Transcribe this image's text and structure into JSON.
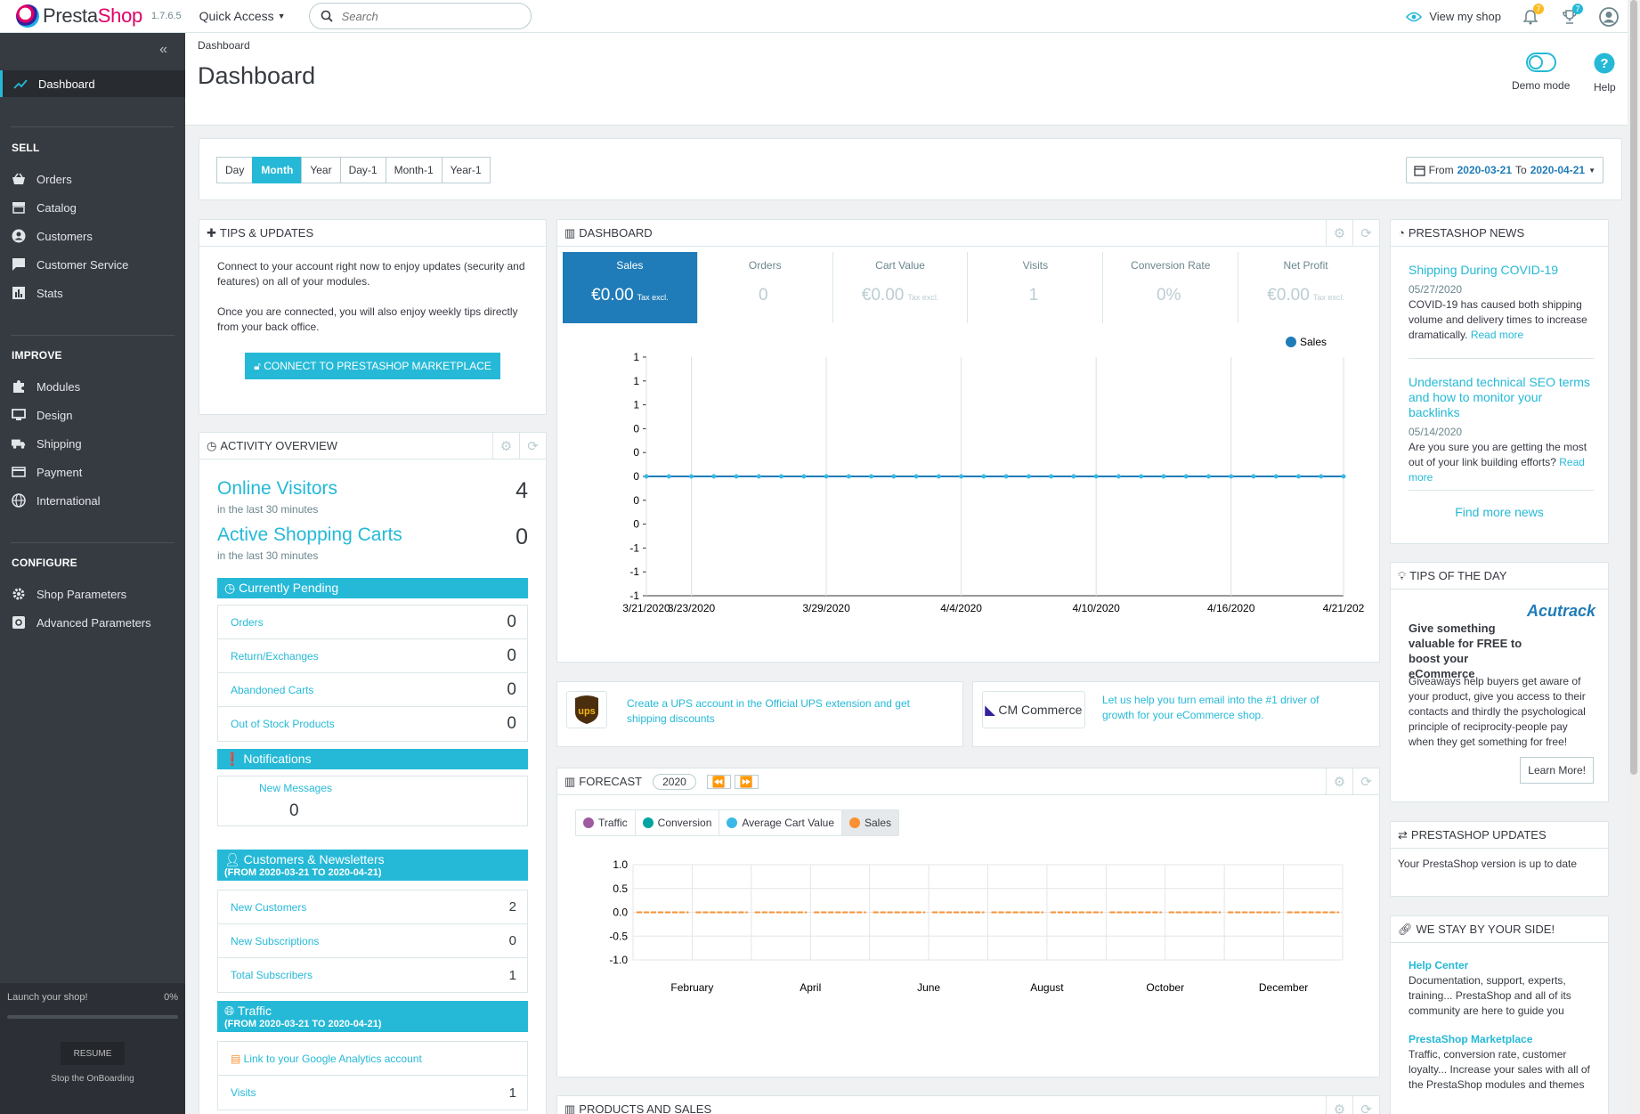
{
  "app": {
    "name_pre": "Presta",
    "name_post": "Shop",
    "version": "1.7.6.5"
  },
  "header": {
    "quick_access": "Quick Access",
    "search_placeholder": "Search",
    "view_shop": "View my shop",
    "notif_orders": "7",
    "notif_customers": "7"
  },
  "sidebar": {
    "active": "Dashboard",
    "sections": {
      "sell": "SELL",
      "improve": "IMPROVE",
      "configure": "CONFIGURE"
    },
    "sell_items": [
      "Orders",
      "Catalog",
      "Customers",
      "Customer Service",
      "Stats"
    ],
    "improve_items": [
      "Modules",
      "Design",
      "Shipping",
      "Payment",
      "International"
    ],
    "configure_items": [
      "Shop Parameters",
      "Advanced Parameters"
    ],
    "onboarding": {
      "label": "Launch your shop!",
      "percent": "0%",
      "resume": "RESUME",
      "stop": "Stop the OnBoarding"
    }
  },
  "page": {
    "breadcrumb": "Dashboard",
    "title": "Dashboard",
    "demo_mode": "Demo mode",
    "help": "Help"
  },
  "period": {
    "buttons": [
      "Day",
      "Month",
      "Year",
      "Day-1",
      "Month-1",
      "Year-1"
    ],
    "active": "Month",
    "from_label": "From",
    "from": "2020-03-21",
    "to_label": "To",
    "to": "2020-04-21"
  },
  "tips": {
    "title": "TIPS & UPDATES",
    "p1": "Connect to your account right now to enjoy updates (security and features) on all of your modules.",
    "p2": "Once you are connected, you will also enjoy weekly tips directly from your back office.",
    "button": "CONNECT TO PRESTASHOP MARKETPLACE"
  },
  "activity": {
    "title": "ACTIVITY OVERVIEW",
    "online_visitors": "Online Visitors",
    "online_visitors_value": "4",
    "online_sub": "in the last 30 minutes",
    "active_carts": "Active Shopping Carts",
    "active_carts_value": "0",
    "carts_sub": "in the last 30 minutes",
    "pending_title": "Currently Pending",
    "pending": [
      {
        "label": "Orders",
        "value": "0"
      },
      {
        "label": "Return/Exchanges",
        "value": "0"
      },
      {
        "label": "Abandoned Carts",
        "value": "0"
      },
      {
        "label": "Out of Stock Products",
        "value": "0"
      }
    ],
    "notifications_title": "Notifications",
    "new_messages": "New Messages",
    "new_messages_value": "0",
    "customers_title": "Customers & Newsletters",
    "customers_range": "(FROM 2020-03-21 TO 2020-04-21)",
    "customers": [
      {
        "label": "New Customers",
        "value": "2"
      },
      {
        "label": "New Subscriptions",
        "value": "0"
      },
      {
        "label": "Total Subscribers",
        "value": "1"
      }
    ],
    "traffic_title": "Traffic",
    "traffic_range": "(FROM 2020-03-21 TO 2020-04-21)",
    "ga_link": "Link to your Google Analytics account",
    "visits_label": "Visits",
    "visits_value": "1"
  },
  "dashboard": {
    "title": "DASHBOARD",
    "kpis": [
      {
        "label": "Sales",
        "value": "€0.00",
        "suffix": "Tax excl."
      },
      {
        "label": "Orders",
        "value": "0",
        "suffix": ""
      },
      {
        "label": "Cart Value",
        "value": "€0.00",
        "suffix": "Tax excl."
      },
      {
        "label": "Visits",
        "value": "1",
        "suffix": ""
      },
      {
        "label": "Conversion Rate",
        "value": "0%",
        "suffix": ""
      },
      {
        "label": "Net Profit",
        "value": "€0.00",
        "suffix": "Tax excl."
      }
    ],
    "legend": "Sales"
  },
  "chart_data": [
    {
      "type": "line",
      "title": "",
      "series": [
        {
          "name": "Sales",
          "values": [
            0,
            0,
            0,
            0,
            0,
            0,
            0,
            0,
            0,
            0,
            0,
            0,
            0,
            0,
            0,
            0,
            0,
            0,
            0,
            0,
            0,
            0,
            0,
            0,
            0,
            0,
            0,
            0,
            0,
            0,
            0,
            0
          ]
        }
      ],
      "x_start": "2020-03-21",
      "x_end": "2020-04-21",
      "x_ticks": [
        "3/21/2020",
        "3/23/2020",
        "3/29/2020",
        "4/4/2020",
        "4/10/2020",
        "4/16/2020",
        "4/21/202"
      ],
      "y_ticks": [
        "1",
        "1",
        "1",
        "0",
        "0",
        "0",
        "0",
        "0",
        "-1",
        "-1",
        "-1"
      ],
      "ylim": [
        -1,
        1
      ],
      "grid": true,
      "legend": "top-right"
    },
    {
      "type": "line",
      "title": "",
      "series": [
        {
          "name": "Sales",
          "values": [
            0,
            0,
            0,
            0,
            0,
            0,
            0,
            0,
            0,
            0,
            0,
            0
          ]
        }
      ],
      "x_ticks": [
        "February",
        "April",
        "June",
        "August",
        "October",
        "December"
      ],
      "y_ticks": [
        "1.0",
        "0.5",
        "0.0",
        "-0.5",
        "-1.0"
      ],
      "ylim": [
        -1.0,
        1.0
      ],
      "grid": true
    }
  ],
  "promos": {
    "ups_text": "Create a UPS account in the Official UPS extension and get shipping discounts",
    "ups_logo": "ups",
    "cm_logo": "CM Commerce",
    "cm_text": "Let us help you turn email into the #1 driver of growth for your eCommerce shop."
  },
  "forecast": {
    "title": "FORECAST",
    "year": "2020",
    "legend": [
      "Traffic",
      "Conversion",
      "Average Cart Value",
      "Sales"
    ]
  },
  "products_sales": {
    "title": "PRODUCTS AND SALES"
  },
  "news": {
    "title": "PRESTASHOP NEWS",
    "items": [
      {
        "title": "Shipping During COVID-19",
        "date": "05/27/2020",
        "desc": "COVID-19 has caused both shipping volume and delivery times to increase dramatically.",
        "read": "Read more"
      },
      {
        "title": "Understand technical SEO terms and how to monitor your backlinks",
        "date": "05/14/2020",
        "desc": "Are you sure you are getting the most out of your link building efforts?",
        "read": "Read more"
      }
    ],
    "more": "Find more news"
  },
  "tip_of_day": {
    "title": "TIPS OF THE DAY",
    "brand": "Acutrack",
    "heading": "Give something valuable for FREE to boost your eCommerce",
    "body": "Giveaways help buyers get aware of your product, give you access to their contacts and thirdly the psychological principle of reciprocity-people pay when they get something for free!",
    "button": "Learn More!"
  },
  "updates": {
    "title": "PRESTASHOP UPDATES",
    "text": "Your PrestaShop version is up to date"
  },
  "side": {
    "title": "WE STAY BY YOUR SIDE!",
    "items": [
      {
        "title": "Help Center",
        "desc": "Documentation, support, experts, training... PrestaShop and all of its community are here to guide you"
      },
      {
        "title": "PrestaShop Marketplace",
        "desc": "Traffic, conversion rate, customer loyalty... Increase your sales with all of the PrestaShop modules and themes"
      }
    ]
  },
  "colors": {
    "accent": "#25b9d7",
    "kpi_active": "#1f7cb8",
    "sidebar": "#363a41",
    "forecast_traffic": "#9e5ba1",
    "forecast_conversion": "#00a4a0",
    "forecast_cart": "#3bb9e6",
    "forecast_sales": "#f99031"
  }
}
